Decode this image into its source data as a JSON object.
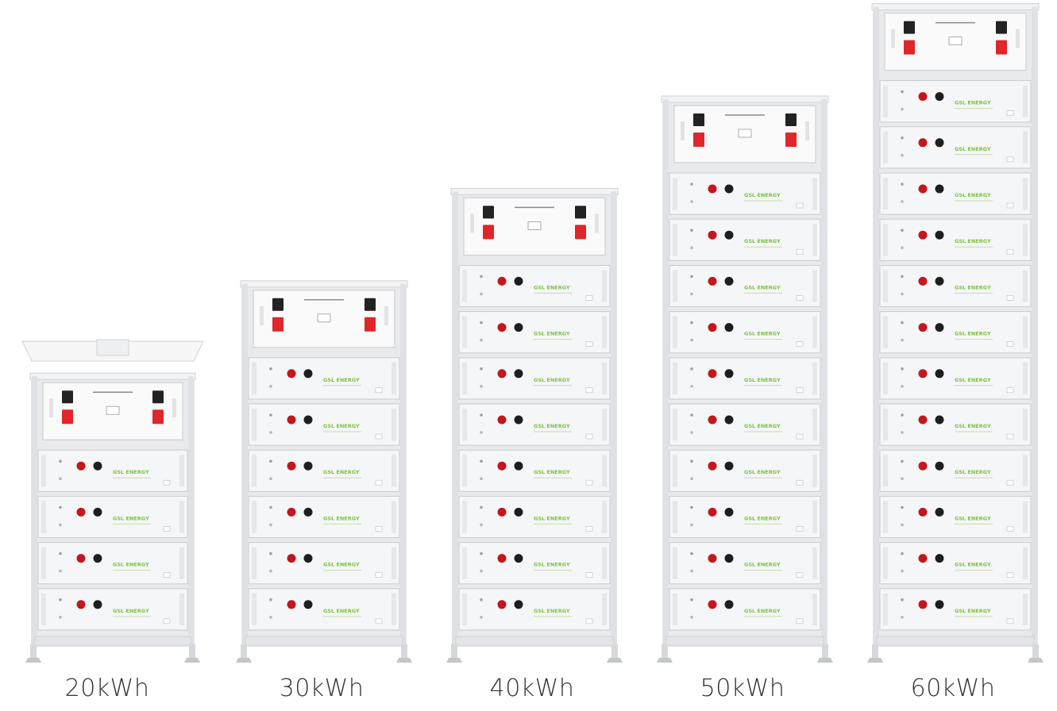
{
  "captions": [
    "20kWh",
    "30kWh",
    "40kWh",
    "50kWh",
    "60kWh"
  ],
  "cabinets": [
    {
      "label": "20kWh",
      "battery_modules": 4,
      "control_box": true,
      "brand_text": "GSL ENERGY"
    },
    {
      "label": "30kWh",
      "battery_modules": 6,
      "control_box": true,
      "brand_text": "GSL ENERGY"
    },
    {
      "label": "40kWh",
      "battery_modules": 8,
      "control_box": true,
      "brand_text": "GSL ENERGY"
    },
    {
      "label": "50kWh",
      "battery_modules": 10,
      "control_box": true,
      "brand_text": "GSL ENERGY"
    },
    {
      "label": "60kWh",
      "battery_modules": 12,
      "control_box": true,
      "brand_text": "GSL ENERGY"
    }
  ],
  "colors": {
    "frame": "#e9eaec",
    "frame_edge": "#cfd2d6",
    "module_face": "#f5f6f7",
    "module_edge": "#c8cbcf",
    "terminal_red": "#c4161c",
    "terminal_black": "#1e1e1e",
    "brand_green": "#7cc242",
    "breaker_red": "#e0262b",
    "breaker_black": "#222222",
    "caption": "#333333"
  }
}
